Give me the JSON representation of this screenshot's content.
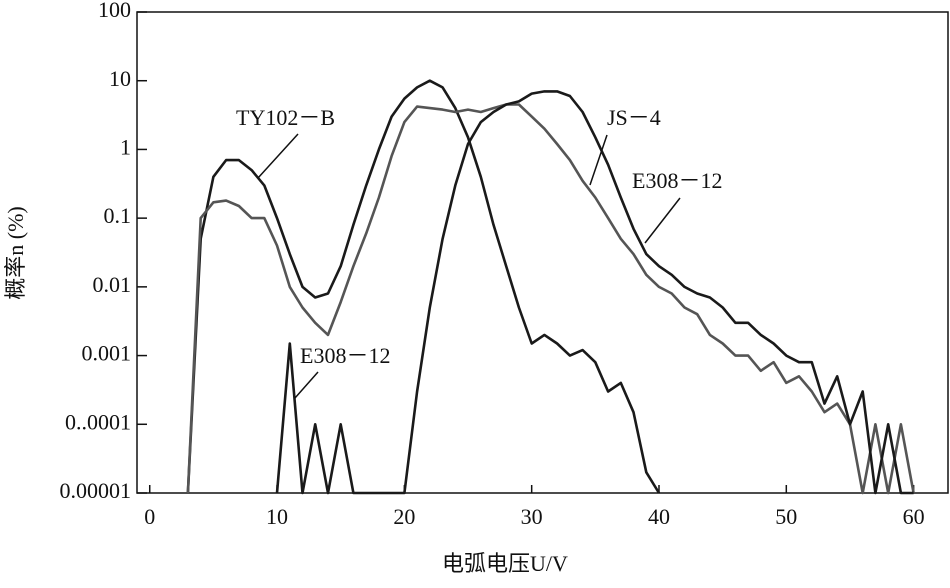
{
  "chart_data": {
    "type": "line",
    "x_label": "电弧电压U/V",
    "y_label": "概率n (%)",
    "x": [
      2,
      3,
      4,
      5,
      6,
      7,
      8,
      9,
      10,
      11,
      12,
      13,
      14,
      15,
      16,
      17,
      18,
      19,
      20,
      21,
      22,
      23,
      24,
      25,
      26,
      27,
      28,
      29,
      30,
      31,
      32,
      33,
      34,
      35,
      36,
      37,
      38,
      39,
      40,
      41,
      42,
      43,
      44,
      45,
      46,
      47,
      48,
      49,
      50,
      51,
      52,
      53,
      54,
      55,
      56,
      57,
      58,
      59,
      60
    ],
    "series": [
      {
        "name": "TY102－B",
        "color": "#1a1a1a",
        "values": [
          null,
          1e-05,
          0.05,
          0.4,
          0.7,
          0.7,
          0.5,
          0.3,
          0.1,
          0.03,
          0.01,
          0.007,
          0.008,
          0.02,
          0.08,
          0.3,
          1,
          3,
          5.5,
          8,
          10,
          8,
          4,
          1.5,
          0.4,
          0.08,
          0.02,
          0.005,
          0.0015,
          0.002,
          0.0015,
          0.001,
          0.0012,
          0.0008,
          0.0003,
          0.0004,
          0.00015,
          2e-05,
          1e-05,
          null,
          null,
          null,
          null,
          null,
          null,
          null,
          null,
          null,
          null,
          null,
          null,
          null,
          null,
          null,
          null,
          null,
          null,
          null,
          null
        ]
      },
      {
        "name": "JS－4",
        "color": "#555555",
        "values": [
          null,
          1e-05,
          0.1,
          0.17,
          0.18,
          0.15,
          0.1,
          0.1,
          0.04,
          0.01,
          0.005,
          0.003,
          0.002,
          0.006,
          0.02,
          0.06,
          0.2,
          0.8,
          2.5,
          4.2,
          4,
          3.8,
          3.5,
          3.8,
          3.5,
          4,
          4.5,
          4.5,
          3,
          2,
          1.2,
          0.7,
          0.35,
          0.2,
          0.1,
          0.05,
          0.03,
          0.015,
          0.01,
          0.008,
          0.005,
          0.004,
          0.002,
          0.0015,
          0.001,
          0.001,
          0.0006,
          0.0008,
          0.0004,
          0.0005,
          0.0003,
          0.00015,
          0.0002,
          0.0001,
          1e-05,
          0.0001,
          1e-05,
          0.0001,
          1e-05
        ]
      },
      {
        "name": "E308－12",
        "color": "#1a1a1a",
        "values": [
          null,
          null,
          null,
          null,
          null,
          null,
          null,
          null,
          1e-05,
          0.0015,
          1e-05,
          0.0001,
          1e-05,
          0.0001,
          1e-05,
          1e-05,
          1e-05,
          1e-05,
          1e-05,
          0.0003,
          0.005,
          0.05,
          0.3,
          1.2,
          2.5,
          3.5,
          4.5,
          5,
          6.5,
          7,
          7,
          6,
          3.5,
          1.5,
          0.6,
          0.2,
          0.07,
          0.03,
          0.02,
          0.015,
          0.01,
          0.008,
          0.007,
          0.005,
          0.003,
          0.003,
          0.002,
          0.0015,
          0.001,
          0.0008,
          0.0008,
          0.0002,
          0.0005,
          0.0001,
          0.0003,
          1e-05,
          0.0001,
          1e-05,
          1e-05
        ]
      }
    ],
    "xlim": [
      -1,
      62.7
    ],
    "xticks": [
      0,
      10,
      20,
      30,
      40,
      50,
      60
    ],
    "ylim": [
      1e-05,
      100
    ],
    "ylog": true,
    "yticks": [
      1e-05,
      {
        "value": 0.0001,
        "label": "0..0001"
      },
      0.001,
      0.01,
      0.1,
      1,
      10,
      100
    ]
  }
}
